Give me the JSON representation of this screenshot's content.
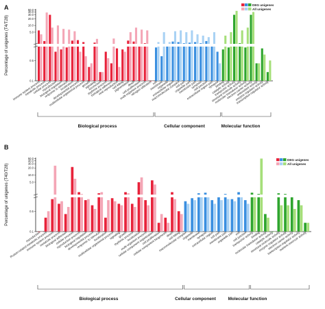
{
  "chart_data": [
    {
      "type": "bar",
      "panel": "A",
      "ylabel": "Percentage of unigenes (T4/T28)",
      "y_ticks_upper": [
        "50.0",
        "40.0",
        "30.0",
        "20.0",
        "10.0",
        "5.0"
      ],
      "y_ticks_lower": [
        "0.5",
        "0.1"
      ],
      "legend": [
        "DEG unigenes",
        "All unigenes"
      ],
      "series": [
        {
          "name": "DEG unigenes",
          "values": [
            6.0,
            2.0,
            30.0,
            1.0,
            1.2,
            1.4,
            2.1,
            2.2,
            1.8,
            0.3,
            1.7,
            0.2,
            1.0,
            0.4,
            1.3,
            1.2,
            2.1,
            1.9,
            1.5,
            1.6,
            0.1,
            1.4,
            0.7,
            1.5,
            1.9,
            1.8,
            1.6,
            1.7,
            1.8,
            1.6,
            2.0,
            1.5,
            1.0,
            1.2,
            1.4,
            30.0,
            1.6,
            1.4,
            30.0,
            0.4,
            1.3,
            0.2
          ]
        },
        {
          "name": "All unigenes",
          "values": [
            4.0,
            38.0,
            8.0,
            10.0,
            7.0,
            6.5,
            5.5,
            1.0,
            0.7,
            0.4,
            2.5,
            0.2,
            0.6,
            2.6,
            0.3,
            1.0,
            5.0,
            8.0,
            6.5,
            6.0,
            0.1,
            1.8,
            5.0,
            1.8,
            5.5,
            6.0,
            5.0,
            6.0,
            4.0,
            3.5,
            3.0,
            5.0,
            0.4,
            3.5,
            5.0,
            45.0,
            6.0,
            8.0,
            40.0,
            0.4,
            0.8,
            0.5
          ]
        }
      ],
      "categories": [
        "immune system process",
        "metabolic process",
        "cellular process",
        "reproduction",
        "biological regulation",
        "response to stimulus",
        "localization",
        "developmental process",
        "multicellular organismal process",
        "growth",
        "signaling",
        "locomotion",
        "rhythmic process",
        "biological adhesion",
        "viral reproduction",
        "cell killing",
        "pigmentation",
        "death",
        "cell proliferation",
        "multi-organism process",
        "nitrogen utilization",
        "cell",
        "membrane",
        "organelle",
        "extracellular region",
        "macromolecular complex",
        "cell part",
        "organelle part",
        "membrane part",
        "symplast",
        "cell junction",
        "extracellular region part",
        "synapse",
        "binding",
        "catalytic activity",
        "transporter activity",
        "structural molecule activity",
        "molecular transducer activity",
        "electron carrier activity",
        "antioxidant activity",
        "enzyme regulator activity",
        "transcription regulator activity"
      ],
      "groups": [
        {
          "label": "Biological process",
          "count": 21
        },
        {
          "label": "Cellular component",
          "count": 12
        },
        {
          "label": "Molecular function",
          "count": 9
        }
      ]
    },
    {
      "type": "bar",
      "panel": "B",
      "ylabel": "Percentage of unigenes (T40/T28)",
      "y_ticks_upper": [
        "50.0",
        "40.0",
        "30.0",
        "20.0",
        "10.0",
        "5.0"
      ],
      "y_ticks_lower": [
        "0.5",
        "0.1"
      ],
      "legend": [
        "DEG unigenes",
        "All unigenes"
      ],
      "series": [
        {
          "name": "DEG unigenes",
          "values": [
            0.1,
            0.3,
            1.3,
            0.9,
            0.4,
            22.0,
            1.9,
            1.2,
            0.8,
            1.7,
            0.3,
            1.4,
            0.9,
            1.9,
            0.9,
            5.0,
            1.2,
            6.0,
            0.2,
            0.3,
            1.9,
            0.5,
            1.1,
            1.4,
            1.7,
            1.8,
            1.2,
            1.5,
            1.6,
            1.3,
            1.9,
            1.2,
            1.8,
            1.6,
            0.4,
            0.1,
            1.7,
            1.6,
            1.5,
            1.2,
            0.2
          ]
        },
        {
          "name": "All unigenes",
          "values": [
            0.1,
            0.5,
            25.0,
            1.1,
            0.7,
            7.0,
            1.6,
            1.3,
            0.6,
            1.9,
            1.2,
            1.1,
            0.8,
            1.7,
            0.7,
            8.0,
            0.8,
            4.0,
            0.4,
            0.2,
            1.3,
            0.4,
            0.9,
            1.2,
            1.5,
            1.5,
            0.9,
            1.2,
            1.3,
            1.1,
            1.5,
            0.9,
            1.5,
            50.0,
            0.3,
            0.1,
            0.8,
            0.8,
            0.6,
            0.8,
            0.2
          ]
        },
        {
          "name": "DEG unigenes (group marker)",
          "values": [
            0.1,
            0.4,
            1.2,
            0.8,
            0.5,
            18.0,
            1.8,
            1.1,
            0.7,
            1.6,
            0.4,
            1.3,
            1.1,
            1.8,
            0.8,
            4.2,
            1.1,
            5.2,
            0.3,
            0.2,
            1.8,
            1.2,
            2.6,
            1.5,
            1.4,
            2.0,
            16.0,
            1.6,
            1.8,
            1.5,
            22.0,
            1.4,
            1.6,
            1.5,
            0.3,
            0.2,
            1.2,
            2.1,
            1.9,
            0.9,
            0.3
          ]
        },
        {
          "name": "All unigenes (group marker)",
          "values": [
            0.1,
            0.3,
            1.0,
            0.9,
            0.5,
            6.0,
            1.5,
            1.0,
            0.6,
            1.7,
            0.8,
            1.1,
            0.9,
            1.6,
            0.7,
            6.0,
            0.8,
            3.0,
            0.4,
            0.2,
            1.2,
            2.0,
            5.0,
            1.2,
            1.3,
            1.4,
            7.0,
            1.1,
            1.2,
            1.1,
            2.0,
            0.9,
            1.3,
            1.1,
            0.4,
            0.1,
            0.9,
            1.4,
            1.3,
            0.6,
            0.2
          ]
        }
      ],
      "categories": [
        "reproduction",
        "Protein-related metabolic process",
        "immune system process",
        "metabolic process",
        "biological adhesion",
        "cellular process",
        "reproduction process",
        "biological regulation",
        "developmental process",
        "response to stimulus",
        "localization",
        "multicellular organismal process",
        "signaling",
        "growth",
        "rhythmic process",
        "localization",
        "multi-organism process",
        "cellular component organization",
        "cell proliferation",
        "cellular component biogenesis",
        "death",
        "cell killing",
        "macromolecular complex",
        "organelle",
        "membrane",
        "synapse",
        "extracellular region",
        "cell part",
        "membrane part",
        "organelle part",
        "cell",
        "cell junction",
        "transporter activity",
        "binding",
        "molecular transducer activity",
        "catalytic activity",
        "structural molecule activity",
        "enzyme regulator activity",
        "electron carrier activity",
        "transcription regulator activity",
        "nutrient reservoir activity"
      ],
      "groups": [
        {
          "label": "Biological process",
          "count": 22
        },
        {
          "label": "Cellular component",
          "count": 10
        },
        {
          "label": "Molecular function",
          "count": 9
        }
      ]
    }
  ],
  "colors": {
    "bp_deg": "#e8223a",
    "bp_all": "#f4a6b6",
    "cc_deg": "#3a8fe0",
    "cc_all": "#a9d2f4",
    "mf_deg": "#2ea52e",
    "mf_all": "#a6df7a"
  }
}
